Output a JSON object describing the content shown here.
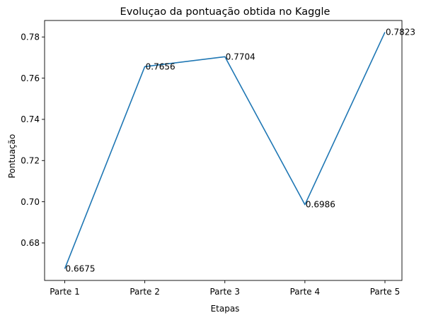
{
  "chart_data": {
    "type": "line",
    "title": "Evoluçao da pontuação obtida no Kaggle",
    "xlabel": "Etapas",
    "ylabel": "Pontuação",
    "categories": [
      "Parte 1",
      "Parte 2",
      "Parte 3",
      "Parte 4",
      "Parte 5"
    ],
    "values": [
      0.6675,
      0.7656,
      0.7704,
      0.6986,
      0.7823
    ],
    "data_labels": [
      "0.6675",
      "0.7656",
      "0.7704",
      "0.6986",
      "0.7823"
    ],
    "ylim": [
      0.6618,
      0.788
    ],
    "yticks": [
      0.68,
      0.7,
      0.72,
      0.74,
      0.76,
      0.78
    ],
    "ytick_labels": [
      "0.68",
      "0.70",
      "0.72",
      "0.74",
      "0.76",
      "0.78"
    ],
    "grid": false,
    "line_color": "#1f77b4"
  }
}
